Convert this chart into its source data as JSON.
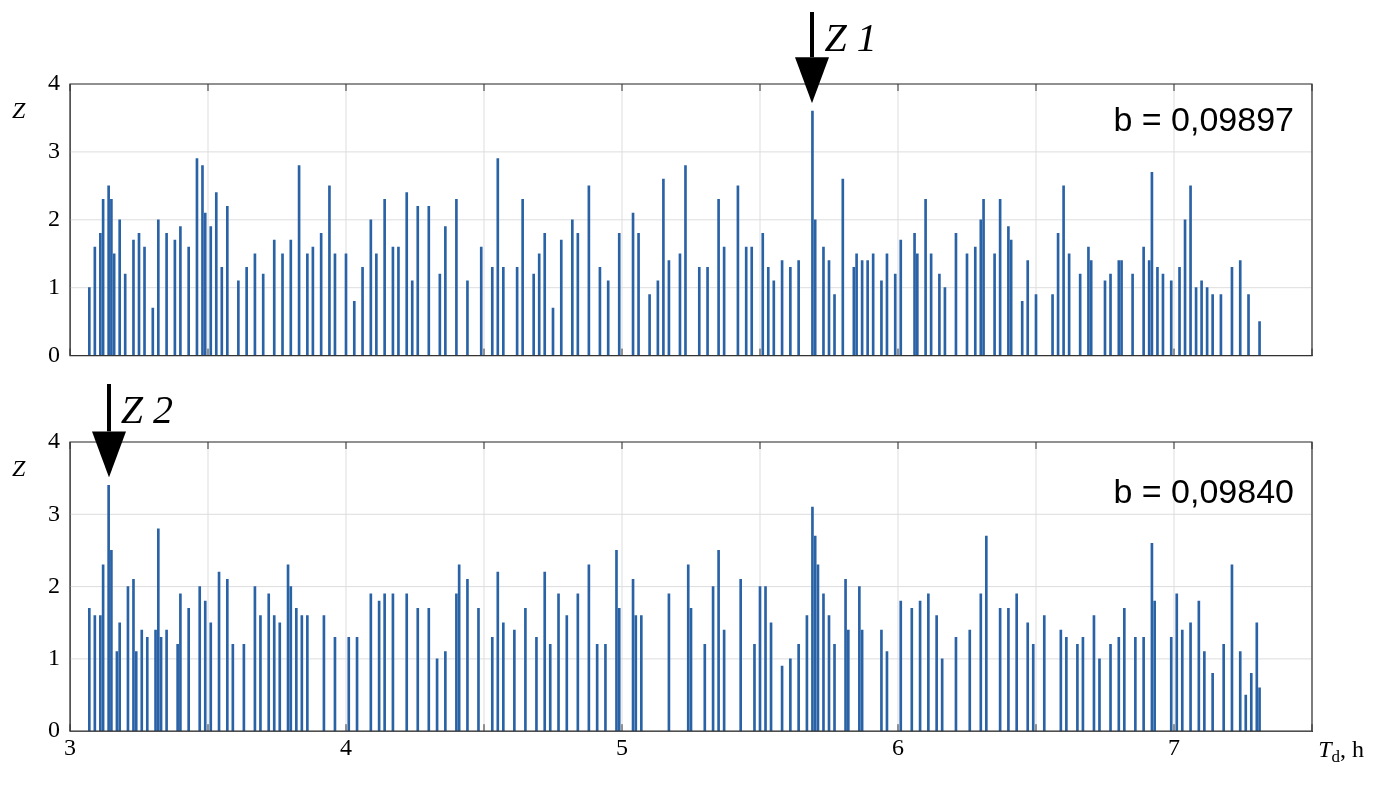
{
  "chart_data": [
    {
      "type": "bar",
      "ylabel": "Z",
      "color": "#2a62a6",
      "grid": true,
      "tick_labels": "y",
      "xlim": [
        3,
        7.5
      ],
      "xticks": [
        3,
        {
          "value": 3.5,
          "label": null
        },
        4,
        {
          "value": 4.5,
          "label": null
        },
        5,
        {
          "value": 5.5,
          "label": null
        },
        6,
        {
          "value": 6.5,
          "label": null
        },
        7,
        {
          "value": 7.5,
          "label": null
        }
      ],
      "ylim": [
        0,
        4
      ],
      "yticks": [
        0,
        1,
        2,
        3,
        4
      ],
      "annotations": [
        {
          "text": "Z 1",
          "x": 5.69,
          "y": 3.6
        },
        "b = 0,09897"
      ],
      "x": [
        3.07,
        3.09,
        3.11,
        3.12,
        3.14,
        3.15,
        3.16,
        3.18,
        3.2,
        3.23,
        3.25,
        3.27,
        3.3,
        3.32,
        3.35,
        3.38,
        3.4,
        3.43,
        3.46,
        3.48,
        3.49,
        3.51,
        3.53,
        3.55,
        3.57,
        3.61,
        3.64,
        3.67,
        3.7,
        3.74,
        3.77,
        3.8,
        3.83,
        3.86,
        3.88,
        3.91,
        3.94,
        3.96,
        4.0,
        4.03,
        4.06,
        4.09,
        4.11,
        4.14,
        4.17,
        4.19,
        4.22,
        4.24,
        4.26,
        4.3,
        4.34,
        4.36,
        4.4,
        4.44,
        4.49,
        4.53,
        4.55,
        4.57,
        4.62,
        4.64,
        4.68,
        4.7,
        4.72,
        4.75,
        4.78,
        4.82,
        4.84,
        4.88,
        4.92,
        4.95,
        4.99,
        5.04,
        5.06,
        5.1,
        5.13,
        5.15,
        5.17,
        5.21,
        5.23,
        5.28,
        5.31,
        5.35,
        5.37,
        5.42,
        5.45,
        5.47,
        5.51,
        5.53,
        5.55,
        5.58,
        5.61,
        5.64,
        5.69,
        5.7,
        5.73,
        5.75,
        5.77,
        5.8,
        5.84,
        5.85,
        5.87,
        5.89,
        5.91,
        5.94,
        5.96,
        5.99,
        6.01,
        6.06,
        6.07,
        6.1,
        6.12,
        6.15,
        6.17,
        6.21,
        6.25,
        6.28,
        6.3,
        6.31,
        6.35,
        6.37,
        6.4,
        6.41,
        6.45,
        6.47,
        6.5,
        6.56,
        6.58,
        6.6,
        6.62,
        6.66,
        6.69,
        6.7,
        6.75,
        6.77,
        6.8,
        6.81,
        6.85,
        6.89,
        6.91,
        6.92,
        6.94,
        6.96,
        6.99,
        7.02,
        7.04,
        7.06,
        7.08,
        7.1,
        7.12,
        7.14,
        7.17,
        7.21,
        7.24,
        7.27,
        7.31
      ],
      "values": [
        1.0,
        1.6,
        1.8,
        2.3,
        2.5,
        2.3,
        1.5,
        2.0,
        1.2,
        1.7,
        1.8,
        1.6,
        0.7,
        2.0,
        1.8,
        1.7,
        1.9,
        1.6,
        2.9,
        2.8,
        2.1,
        1.9,
        2.4,
        1.3,
        2.2,
        1.1,
        1.3,
        1.5,
        1.2,
        1.7,
        1.5,
        1.7,
        2.8,
        1.5,
        1.6,
        1.8,
        2.5,
        1.5,
        1.5,
        0.8,
        1.3,
        2.0,
        1.5,
        2.3,
        1.6,
        1.6,
        2.4,
        1.1,
        2.2,
        2.2,
        1.2,
        1.9,
        2.3,
        1.1,
        1.6,
        1.3,
        2.9,
        1.3,
        1.3,
        2.3,
        1.2,
        1.5,
        1.8,
        0.7,
        1.7,
        2.0,
        1.8,
        2.5,
        1.3,
        1.1,
        1.8,
        2.1,
        1.8,
        0.9,
        1.1,
        2.6,
        1.4,
        1.5,
        2.8,
        1.3,
        1.3,
        2.3,
        1.6,
        2.5,
        1.6,
        1.6,
        1.8,
        1.3,
        1.1,
        1.4,
        1.3,
        1.4,
        3.6,
        2.0,
        1.6,
        1.4,
        0.9,
        2.6,
        1.3,
        1.5,
        1.4,
        1.4,
        1.5,
        1.1,
        1.5,
        1.2,
        1.7,
        1.8,
        1.5,
        2.3,
        1.5,
        1.2,
        1.0,
        1.8,
        1.5,
        1.6,
        2.0,
        2.3,
        1.5,
        2.3,
        1.9,
        1.7,
        0.8,
        1.4,
        0.9,
        0.9,
        1.8,
        2.5,
        1.5,
        1.2,
        1.6,
        1.4,
        1.1,
        1.2,
        1.4,
        1.4,
        1.2,
        1.6,
        1.4,
        2.7,
        1.3,
        1.2,
        1.1,
        1.3,
        2.0,
        2.5,
        1.0,
        1.1,
        1.0,
        0.9,
        0.9,
        1.3,
        1.4,
        0.9,
        0.5
      ]
    },
    {
      "type": "bar",
      "ylabel": "Z",
      "xlabel": "T$_{d}$, h",
      "color": "#2a62a6",
      "grid": true,
      "xlim": [
        3,
        7.5
      ],
      "xticks": [
        3,
        {
          "value": 3.5,
          "label": null
        },
        4,
        {
          "value": 4.5,
          "label": null
        },
        5,
        {
          "value": 5.5,
          "label": null
        },
        6,
        {
          "value": 6.5,
          "label": null
        },
        7,
        {
          "value": 7.5,
          "label": null
        }
      ],
      "ylim": [
        0,
        4
      ],
      "yticks": [
        0,
        1,
        2,
        3,
        4
      ],
      "annotations": [
        {
          "text": "Z 2",
          "x": 3.14,
          "y": 3.4
        },
        "b = 0,09840"
      ],
      "x": [
        3.07,
        3.09,
        3.11,
        3.12,
        3.14,
        3.15,
        3.17,
        3.18,
        3.21,
        3.23,
        3.24,
        3.26,
        3.28,
        3.31,
        3.32,
        3.33,
        3.35,
        3.39,
        3.4,
        3.43,
        3.47,
        3.49,
        3.51,
        3.54,
        3.57,
        3.59,
        3.63,
        3.67,
        3.69,
        3.72,
        3.74,
        3.76,
        3.79,
        3.8,
        3.82,
        3.84,
        3.86,
        3.92,
        3.96,
        4.01,
        4.04,
        4.09,
        4.12,
        4.14,
        4.17,
        4.22,
        4.26,
        4.3,
        4.33,
        4.36,
        4.4,
        4.41,
        4.44,
        4.48,
        4.53,
        4.55,
        4.57,
        4.61,
        4.65,
        4.69,
        4.72,
        4.74,
        4.77,
        4.8,
        4.84,
        4.88,
        4.91,
        4.94,
        4.98,
        4.99,
        5.04,
        5.05,
        5.07,
        5.17,
        5.24,
        5.25,
        5.3,
        5.33,
        5.35,
        5.37,
        5.43,
        5.48,
        5.5,
        5.52,
        5.54,
        5.58,
        5.61,
        5.64,
        5.67,
        5.69,
        5.7,
        5.71,
        5.73,
        5.75,
        5.77,
        5.81,
        5.82,
        5.86,
        5.87,
        5.94,
        5.96,
        6.01,
        6.05,
        6.08,
        6.11,
        6.14,
        6.16,
        6.21,
        6.26,
        6.3,
        6.32,
        6.37,
        6.4,
        6.43,
        6.47,
        6.49,
        6.53,
        6.59,
        6.61,
        6.65,
        6.67,
        6.71,
        6.73,
        6.77,
        6.8,
        6.82,
        6.86,
        6.89,
        6.92,
        6.93,
        6.99,
        7.01,
        7.03,
        7.06,
        7.09,
        7.11,
        7.14,
        7.18,
        7.21,
        7.24,
        7.26,
        7.28,
        7.3,
        7.31
      ],
      "values": [
        1.7,
        1.6,
        1.6,
        2.3,
        3.4,
        2.5,
        1.1,
        1.5,
        2.0,
        2.1,
        1.1,
        1.4,
        1.3,
        1.4,
        2.8,
        1.3,
        1.4,
        1.2,
        1.9,
        1.7,
        2.0,
        1.8,
        1.5,
        2.2,
        2.1,
        1.2,
        1.2,
        2.0,
        1.6,
        1.9,
        1.6,
        1.5,
        2.3,
        2.0,
        1.7,
        1.6,
        1.6,
        1.6,
        1.3,
        1.3,
        1.3,
        1.9,
        1.8,
        1.9,
        1.9,
        1.9,
        1.7,
        1.7,
        1.0,
        1.1,
        1.9,
        2.3,
        2.1,
        1.7,
        1.3,
        2.2,
        1.5,
        1.4,
        1.7,
        1.3,
        2.2,
        1.2,
        1.9,
        1.6,
        1.9,
        2.3,
        1.2,
        1.2,
        2.5,
        1.7,
        2.1,
        1.6,
        1.6,
        1.9,
        2.3,
        1.7,
        1.2,
        2.0,
        2.5,
        1.4,
        2.1,
        1.2,
        2.0,
        2.0,
        1.5,
        0.9,
        1.0,
        1.2,
        1.6,
        3.1,
        2.7,
        2.3,
        1.9,
        1.6,
        1.2,
        2.1,
        1.4,
        2.0,
        1.4,
        1.4,
        1.1,
        1.8,
        1.7,
        1.8,
        1.9,
        1.6,
        1.0,
        1.3,
        1.4,
        1.9,
        2.7,
        1.7,
        1.7,
        1.9,
        1.5,
        1.2,
        1.6,
        1.4,
        1.3,
        1.2,
        1.3,
        1.6,
        1.0,
        1.2,
        1.3,
        1.7,
        1.3,
        1.3,
        2.6,
        1.8,
        1.3,
        1.9,
        1.4,
        1.5,
        1.8,
        1.1,
        0.8,
        1.2,
        2.3,
        1.1,
        0.5,
        0.8,
        1.5,
        0.6
      ]
    }
  ]
}
